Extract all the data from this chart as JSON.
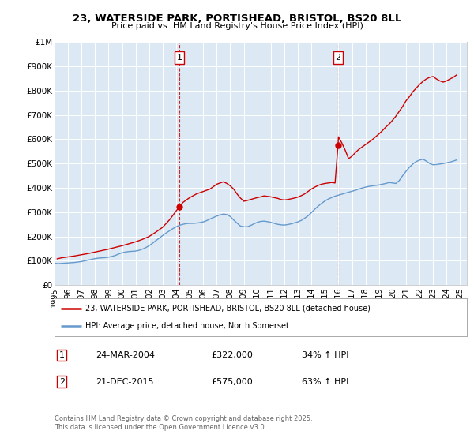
{
  "title": "23, WATERSIDE PARK, PORTISHEAD, BRISTOL, BS20 8LL",
  "subtitle": "Price paid vs. HM Land Registry's House Price Index (HPI)",
  "legend_label_red": "23, WATERSIDE PARK, PORTISHEAD, BRISTOL, BS20 8LL (detached house)",
  "legend_label_blue": "HPI: Average price, detached house, North Somerset",
  "marker1_date_x": 2004.23,
  "marker1_label": "1",
  "marker1_date_str": "24-MAR-2004",
  "marker1_price": "£322,000",
  "marker1_pct": "34% ↑ HPI",
  "marker2_date_x": 2015.97,
  "marker2_label": "2",
  "marker2_date_str": "21-DEC-2015",
  "marker2_price": "£575,000",
  "marker2_pct": "63% ↑ HPI",
  "background_color": "#ffffff",
  "plot_bg_color": "#dce9f5",
  "grid_color": "#ffffff",
  "red_color": "#cc0000",
  "blue_color": "#6699cc",
  "footer": "Contains HM Land Registry data © Crown copyright and database right 2025.\nThis data is licensed under the Open Government Licence v3.0.",
  "hpi_years": [
    1995,
    1995.25,
    1995.5,
    1995.75,
    1996,
    1996.25,
    1996.5,
    1996.75,
    1997,
    1997.25,
    1997.5,
    1997.75,
    1998,
    1998.25,
    1998.5,
    1998.75,
    1999,
    1999.25,
    1999.5,
    1999.75,
    2000,
    2000.25,
    2000.5,
    2000.75,
    2001,
    2001.25,
    2001.5,
    2001.75,
    2002,
    2002.25,
    2002.5,
    2002.75,
    2003,
    2003.25,
    2003.5,
    2003.75,
    2004,
    2004.25,
    2004.5,
    2004.75,
    2005,
    2005.25,
    2005.5,
    2005.75,
    2006,
    2006.25,
    2006.5,
    2006.75,
    2007,
    2007.25,
    2007.5,
    2007.75,
    2008,
    2008.25,
    2008.5,
    2008.75,
    2009,
    2009.25,
    2009.5,
    2009.75,
    2010,
    2010.25,
    2010.5,
    2010.75,
    2011,
    2011.25,
    2011.5,
    2011.75,
    2012,
    2012.25,
    2012.5,
    2012.75,
    2013,
    2013.25,
    2013.5,
    2013.75,
    2014,
    2014.25,
    2014.5,
    2014.75,
    2015,
    2015.25,
    2015.5,
    2015.75,
    2016,
    2016.25,
    2016.5,
    2016.75,
    2017,
    2017.25,
    2017.5,
    2017.75,
    2018,
    2018.25,
    2018.5,
    2018.75,
    2019,
    2019.25,
    2019.5,
    2019.75,
    2020,
    2020.25,
    2020.5,
    2020.75,
    2021,
    2021.25,
    2021.5,
    2021.75,
    2022,
    2022.25,
    2022.5,
    2022.75,
    2023,
    2023.25,
    2023.5,
    2023.75,
    2024,
    2024.25,
    2024.5,
    2024.75
  ],
  "hpi_values": [
    90000,
    88000,
    89000,
    90000,
    91000,
    92000,
    93000,
    95000,
    97000,
    100000,
    103000,
    106000,
    109000,
    111000,
    112000,
    113000,
    115000,
    118000,
    122000,
    128000,
    133000,
    136000,
    138000,
    139000,
    140000,
    143000,
    148000,
    154000,
    162000,
    172000,
    183000,
    193000,
    204000,
    214000,
    223000,
    232000,
    240000,
    246000,
    250000,
    253000,
    254000,
    254000,
    255000,
    257000,
    260000,
    265000,
    272000,
    278000,
    284000,
    289000,
    292000,
    290000,
    282000,
    268000,
    255000,
    243000,
    240000,
    240000,
    245000,
    252000,
    258000,
    262000,
    263000,
    261000,
    258000,
    254000,
    250000,
    248000,
    247000,
    249000,
    252000,
    256000,
    260000,
    266000,
    275000,
    285000,
    298000,
    312000,
    325000,
    336000,
    346000,
    354000,
    360000,
    366000,
    370000,
    374000,
    378000,
    382000,
    386000,
    390000,
    395000,
    399000,
    403000,
    406000,
    408000,
    410000,
    412000,
    415000,
    418000,
    422000,
    420000,
    418000,
    430000,
    450000,
    468000,
    485000,
    498000,
    508000,
    514000,
    518000,
    510000,
    500000,
    495000,
    496000,
    498000,
    500000,
    503000,
    506000,
    510000,
    515000
  ],
  "prop_years": [
    1995.2,
    1995.5,
    1996.0,
    1996.5,
    1997.0,
    1997.5,
    1998.0,
    1998.5,
    1999.0,
    1999.5,
    2000.0,
    2000.5,
    2001.0,
    2001.5,
    2002.0,
    2002.5,
    2003.0,
    2003.5,
    2004.0,
    2004.23,
    2004.5,
    2005.0,
    2005.5,
    2006.0,
    2006.5,
    2007.0,
    2007.25,
    2007.5,
    2007.75,
    2008.0,
    2008.25,
    2008.5,
    2008.75,
    2009.0,
    2009.25,
    2009.5,
    2009.75,
    2010.0,
    2010.25,
    2010.5,
    2010.75,
    2011.0,
    2011.25,
    2011.5,
    2011.75,
    2012.0,
    2012.25,
    2012.5,
    2012.75,
    2013.0,
    2013.25,
    2013.5,
    2013.75,
    2014.0,
    2014.25,
    2014.5,
    2014.75,
    2015.0,
    2015.25,
    2015.5,
    2015.75,
    2015.97,
    2016.0,
    2016.25,
    2016.5,
    2016.75,
    2017.0,
    2017.25,
    2017.5,
    2017.75,
    2018.0,
    2018.25,
    2018.5,
    2018.75,
    2019.0,
    2019.25,
    2019.5,
    2019.75,
    2020.0,
    2020.25,
    2020.5,
    2020.75,
    2021.0,
    2021.25,
    2021.5,
    2021.75,
    2022.0,
    2022.25,
    2022.5,
    2022.75,
    2023.0,
    2023.25,
    2023.5,
    2023.75,
    2024.0,
    2024.25,
    2024.5,
    2024.75
  ],
  "prop_values": [
    108000,
    112000,
    116000,
    120000,
    125000,
    130000,
    136000,
    142000,
    148000,
    155000,
    162000,
    170000,
    178000,
    188000,
    200000,
    218000,
    238000,
    268000,
    305000,
    322000,
    340000,
    360000,
    375000,
    385000,
    395000,
    415000,
    420000,
    425000,
    418000,
    408000,
    395000,
    375000,
    358000,
    345000,
    348000,
    352000,
    356000,
    360000,
    363000,
    367000,
    365000,
    363000,
    360000,
    357000,
    352000,
    350000,
    352000,
    355000,
    358000,
    362000,
    368000,
    375000,
    385000,
    395000,
    403000,
    410000,
    415000,
    418000,
    420000,
    422000,
    420000,
    575000,
    610000,
    585000,
    555000,
    520000,
    530000,
    545000,
    558000,
    568000,
    578000,
    588000,
    598000,
    610000,
    622000,
    635000,
    650000,
    662000,
    678000,
    695000,
    715000,
    735000,
    758000,
    775000,
    795000,
    810000,
    825000,
    838000,
    848000,
    855000,
    858000,
    848000,
    840000,
    835000,
    840000,
    848000,
    855000,
    865000
  ],
  "ylim": [
    0,
    1000000
  ],
  "xlim": [
    1995,
    2025.5
  ],
  "yticks": [
    0,
    100000,
    200000,
    300000,
    400000,
    500000,
    600000,
    700000,
    800000,
    900000,
    1000000
  ],
  "ytick_labels": [
    "£0",
    "£100K",
    "£200K",
    "£300K",
    "£400K",
    "£500K",
    "£600K",
    "£700K",
    "£800K",
    "£900K",
    "£1M"
  ],
  "xticks": [
    1995,
    1996,
    1997,
    1998,
    1999,
    2000,
    2001,
    2002,
    2003,
    2004,
    2005,
    2006,
    2007,
    2008,
    2009,
    2010,
    2011,
    2012,
    2013,
    2014,
    2015,
    2016,
    2017,
    2018,
    2019,
    2020,
    2021,
    2022,
    2023,
    2024,
    2025
  ]
}
